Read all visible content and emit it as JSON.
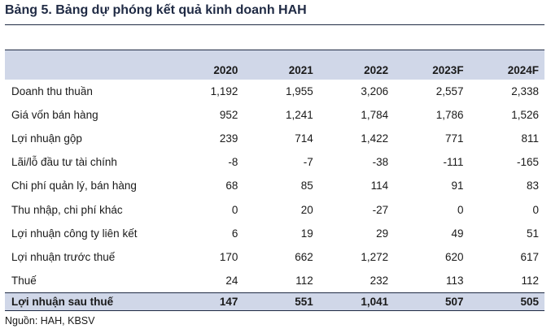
{
  "title": "Bảng 5. Bảng dự phóng kết quả kinh doanh HAH",
  "table": {
    "label_header": "",
    "years": [
      "2020",
      "2021",
      "2022",
      "2023F",
      "2024F"
    ],
    "rows": [
      {
        "label": "Doanh thu thuần",
        "values": [
          "1,192",
          "1,955",
          "3,206",
          "2,557",
          "2,338"
        ]
      },
      {
        "label": "Giá vốn bán hàng",
        "values": [
          "952",
          "1,241",
          "1,784",
          "1,786",
          "1,526"
        ]
      },
      {
        "label": "Lợi nhuận gộp",
        "values": [
          "239",
          "714",
          "1,422",
          "771",
          "811"
        ]
      },
      {
        "label": "Lãi/lỗ đầu tư tài chính",
        "values": [
          "-8",
          "-7",
          "-38",
          "-111",
          "-165"
        ]
      },
      {
        "label": "Chi phí quản lý, bán hàng",
        "values": [
          "68",
          "85",
          "114",
          "91",
          "83"
        ]
      },
      {
        "label": "Thu nhập, chi phí khác",
        "values": [
          "0",
          "20",
          "-27",
          "0",
          "0"
        ]
      },
      {
        "label": "Lợi nhuận công ty liên kết",
        "values": [
          "6",
          "19",
          "29",
          "49",
          "51"
        ]
      },
      {
        "label": "Lợi nhuận trước thuế",
        "values": [
          "170",
          "662",
          "1,272",
          "620",
          "617"
        ]
      },
      {
        "label": "Thuế",
        "values": [
          "24",
          "112",
          "232",
          "113",
          "112"
        ]
      }
    ],
    "total": {
      "label": "Lợi nhuận sau thuế",
      "values": [
        "147",
        "551",
        "1,041",
        "507",
        "505"
      ]
    }
  },
  "source": "Nguồn: HAH, KBSV",
  "colors": {
    "header_bg": "#d0d7e8",
    "title": "#1f2a44"
  }
}
